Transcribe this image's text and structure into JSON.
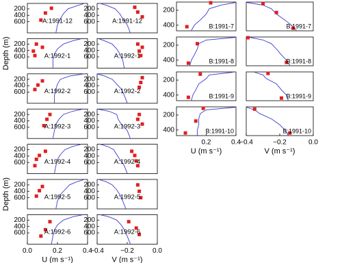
{
  "chart_data": [
    {
      "type": "line",
      "label": "A:1991-12",
      "xlim": [
        0,
        0.4
      ],
      "ylim": [
        950,
        30
      ],
      "yticks": [
        200,
        400,
        600
      ],
      "series": [
        {
          "kind": "line",
          "color": "#3a3ad0",
          "x": [
            0.38,
            0.33,
            0.27,
            0.24,
            0.22,
            0.2,
            0.19
          ],
          "values": [
            30,
            100,
            200,
            350,
            500,
            700,
            940
          ]
        },
        {
          "kind": "scatter",
          "color": "#e02020",
          "x": [
            0.16,
            0.12,
            0.09
          ],
          "values": [
            180,
            330,
            550
          ]
        }
      ]
    },
    {
      "type": "line",
      "label": "A:1991-12",
      "xlim": [
        -0.4,
        0
      ],
      "ylim": [
        950,
        30
      ],
      "yticks": [
        200,
        400,
        600
      ],
      "series": [
        {
          "kind": "line",
          "color": "#3a3ad0",
          "x": [
            -0.38,
            -0.33,
            -0.28,
            -0.25,
            -0.23,
            -0.2,
            -0.18
          ],
          "values": [
            30,
            100,
            200,
            350,
            500,
            700,
            940
          ]
        },
        {
          "kind": "scatter",
          "color": "#e02020",
          "x": [
            -0.15,
            -0.13,
            -0.1
          ],
          "values": [
            150,
            300,
            450
          ]
        }
      ]
    },
    {
      "type": "line",
      "label": "A:1992-1",
      "xlim": [
        0,
        0.4
      ],
      "ylim": [
        950,
        30
      ],
      "yticks": [
        200,
        400,
        600
      ],
      "ylabel": "Depth (m)",
      "series": [
        {
          "kind": "line",
          "color": "#3a3ad0",
          "x": [
            0.36,
            0.3,
            0.24,
            0.2,
            0.18,
            0.17,
            0.17
          ],
          "values": [
            30,
            100,
            200,
            350,
            500,
            700,
            940
          ]
        },
        {
          "kind": "scatter",
          "color": "#e02020",
          "x": [
            0.06,
            0.1,
            0.04,
            0.05
          ],
          "values": [
            200,
            300,
            420,
            560
          ]
        }
      ]
    },
    {
      "type": "line",
      "label": "A:1992-1",
      "xlim": [
        -0.4,
        0
      ],
      "ylim": [
        950,
        30
      ],
      "yticks": [
        200,
        400,
        600
      ],
      "series": [
        {
          "kind": "line",
          "color": "#3a3ad0",
          "x": [
            -0.39,
            -0.35,
            -0.3,
            -0.27,
            -0.25,
            -0.23,
            -0.22
          ],
          "values": [
            30,
            100,
            200,
            350,
            500,
            700,
            940
          ]
        },
        {
          "kind": "scatter",
          "color": "#e02020",
          "x": [
            -0.13,
            -0.1,
            -0.12,
            -0.11
          ],
          "values": [
            200,
            300,
            420,
            560
          ]
        }
      ]
    },
    {
      "type": "line",
      "label": "A:1992-2",
      "xlim": [
        0,
        0.4
      ],
      "ylim": [
        950,
        30
      ],
      "yticks": [
        200,
        400,
        600
      ],
      "series": [
        {
          "kind": "line",
          "color": "#3a3ad0",
          "x": [
            0.38,
            0.28,
            0.22,
            0.2,
            0.19,
            0.18,
            0.18
          ],
          "values": [
            30,
            100,
            200,
            350,
            500,
            700,
            940
          ]
        },
        {
          "kind": "scatter",
          "color": "#e02020",
          "x": [
            0.1,
            0.07,
            0.05
          ],
          "values": [
            250,
            380,
            520
          ]
        }
      ]
    },
    {
      "type": "line",
      "label": "A:1992-2",
      "xlim": [
        -0.4,
        0
      ],
      "ylim": [
        950,
        30
      ],
      "yticks": [
        200,
        400,
        600
      ],
      "series": [
        {
          "kind": "line",
          "color": "#3a3ad0",
          "x": [
            -0.4,
            -0.35,
            -0.3,
            -0.27,
            -0.24,
            -0.22,
            -0.2
          ],
          "values": [
            30,
            100,
            200,
            350,
            500,
            700,
            940
          ]
        },
        {
          "kind": "scatter",
          "color": "#e02020",
          "x": [
            -0.1,
            -0.11,
            -0.12
          ],
          "values": [
            150,
            300,
            450
          ]
        }
      ]
    },
    {
      "type": "line",
      "label": "A:1992-3",
      "xlim": [
        0,
        0.4
      ],
      "ylim": [
        950,
        30
      ],
      "yticks": [
        200,
        400,
        600
      ],
      "series": [
        {
          "kind": "line",
          "color": "#3a3ad0",
          "x": [
            0.37,
            0.3,
            0.24,
            0.21,
            0.19,
            0.18,
            0.17
          ],
          "values": [
            30,
            100,
            200,
            350,
            500,
            700,
            940
          ]
        },
        {
          "kind": "scatter",
          "color": "#e02020",
          "x": [
            0.15,
            0.13,
            0.11
          ],
          "values": [
            200,
            350,
            550
          ]
        }
      ]
    },
    {
      "type": "line",
      "label": "A:1992-3",
      "xlim": [
        -0.4,
        0
      ],
      "ylim": [
        950,
        30
      ],
      "yticks": [
        200,
        400,
        600
      ],
      "series": [
        {
          "kind": "line",
          "color": "#3a3ad0",
          "x": [
            -0.4,
            -0.32,
            -0.27,
            -0.26,
            -0.24,
            -0.2,
            -0.18
          ],
          "values": [
            30,
            100,
            200,
            350,
            500,
            700,
            940
          ]
        },
        {
          "kind": "scatter",
          "color": "#e02020",
          "x": [
            -0.12,
            -0.13,
            -0.1
          ],
          "values": [
            200,
            350,
            500
          ]
        }
      ]
    },
    {
      "type": "line",
      "label": "A:1992-4",
      "xlim": [
        0,
        0.4
      ],
      "ylim": [
        950,
        30
      ],
      "yticks": [
        200,
        400,
        600
      ],
      "series": [
        {
          "kind": "line",
          "color": "#3a3ad0",
          "x": [
            0.36,
            0.3,
            0.25,
            0.22,
            0.2,
            0.19,
            0.18
          ],
          "values": [
            30,
            100,
            200,
            350,
            500,
            700,
            940
          ]
        },
        {
          "kind": "scatter",
          "color": "#e02020",
          "x": [
            0.12,
            0.08,
            0.06,
            0.05
          ],
          "values": [
            250,
            380,
            500,
            700
          ]
        }
      ]
    },
    {
      "type": "line",
      "label": "A:1992-4",
      "xlim": [
        -0.4,
        0
      ],
      "ylim": [
        950,
        30
      ],
      "yticks": [
        200,
        400,
        600
      ],
      "series": [
        {
          "kind": "line",
          "color": "#3a3ad0",
          "x": [
            -0.38,
            -0.33,
            -0.29,
            -0.27,
            -0.25,
            -0.22,
            -0.2
          ],
          "values": [
            30,
            100,
            200,
            350,
            500,
            700,
            940
          ]
        },
        {
          "kind": "scatter",
          "color": "#e02020",
          "x": [
            -0.17,
            -0.15,
            -0.14,
            -0.13
          ],
          "values": [
            250,
            380,
            550,
            700
          ]
        }
      ]
    },
    {
      "type": "line",
      "label": "A:1992-5",
      "xlim": [
        0,
        0.4
      ],
      "ylim": [
        950,
        30
      ],
      "yticks": [
        200,
        400,
        600
      ],
      "ylabel": "Depth (m)",
      "series": [
        {
          "kind": "line",
          "color": "#3a3ad0",
          "x": [
            0.38,
            0.33,
            0.28,
            0.25,
            0.22,
            0.2,
            0.19
          ],
          "values": [
            30,
            100,
            200,
            350,
            500,
            700,
            940
          ]
        },
        {
          "kind": "scatter",
          "color": "#e02020",
          "x": [
            0.1,
            0.08,
            0.06
          ],
          "values": [
            250,
            380,
            550
          ]
        }
      ]
    },
    {
      "type": "line",
      "label": "A:1992-5",
      "xlim": [
        -0.4,
        0
      ],
      "ylim": [
        950,
        30
      ],
      "yticks": [
        200,
        400,
        600
      ],
      "series": [
        {
          "kind": "line",
          "color": "#3a3ad0",
          "x": [
            -0.39,
            -0.34,
            -0.3,
            -0.27,
            -0.25,
            -0.23,
            -0.21
          ],
          "values": [
            30,
            100,
            200,
            350,
            500,
            700,
            940
          ]
        },
        {
          "kind": "scatter",
          "color": "#e02020",
          "x": [
            -0.13,
            -0.12,
            -0.11
          ],
          "values": [
            200,
            400,
            600
          ]
        }
      ]
    },
    {
      "type": "line",
      "label": "A:1992-6",
      "xlim": [
        0,
        0.4
      ],
      "ylim": [
        950,
        30
      ],
      "yticks": [
        200,
        400,
        600
      ],
      "xticks": [
        {
          "value": 0,
          "label": "0.0"
        },
        0.2,
        0.4
      ],
      "xlabel": "U (m s⁻¹)",
      "series": [
        {
          "kind": "line",
          "color": "#3a3ad0",
          "x": [
            0.37,
            0.3,
            0.24,
            0.2,
            0.18,
            0.17,
            0.16
          ],
          "values": [
            30,
            100,
            200,
            350,
            500,
            700,
            940
          ]
        },
        {
          "kind": "scatter",
          "color": "#e02020",
          "x": [
            0.15,
            0.12,
            0.09
          ],
          "values": [
            250,
            500,
            700
          ]
        }
      ]
    },
    {
      "type": "line",
      "label": "A:1992-6",
      "xlim": [
        -0.4,
        0
      ],
      "ylim": [
        950,
        30
      ],
      "yticks": [
        200,
        400,
        600
      ],
      "xticks": [
        {
          "value": -0.4,
          "label": "−0.4"
        },
        {
          "value": -0.2,
          "label": "−0.2"
        },
        {
          "value": 0,
          "label": "0.0"
        }
      ],
      "xlabel": "V (m s⁻¹)",
      "series": [
        {
          "kind": "line",
          "color": "#3a3ad0",
          "x": [
            -0.38,
            -0.32,
            -0.27,
            -0.24,
            -0.22,
            -0.2,
            -0.18
          ],
          "values": [
            30,
            100,
            200,
            350,
            500,
            700,
            940
          ]
        },
        {
          "kind": "scatter",
          "color": "#e02020",
          "x": [
            -0.19,
            -0.14,
            -0.12
          ],
          "values": [
            250,
            450,
            650
          ]
        }
      ]
    },
    {
      "type": "line",
      "label": "B:1991-7",
      "xlim": [
        0,
        0.4
      ],
      "ylim": [
        475,
        90
      ],
      "yticks": [
        200,
        400
      ],
      "series": [
        {
          "kind": "line",
          "color": "#3a3ad0",
          "x": [
            0.4,
            0.3,
            0.22,
            0.2,
            0.16,
            0.12,
            0.1
          ],
          "values": [
            95,
            130,
            180,
            250,
            330,
            400,
            470
          ]
        },
        {
          "kind": "scatter",
          "color": "#e02020",
          "x": [
            0.23,
            0.07
          ],
          "values": [
            100,
            420
          ]
        }
      ]
    },
    {
      "type": "line",
      "label": "B:1991-7",
      "xlim": [
        -0.4,
        0
      ],
      "ylim": [
        475,
        90
      ],
      "series": [
        {
          "kind": "line",
          "color": "#3a3ad0",
          "x": [
            -0.4,
            -0.3,
            -0.25,
            -0.22,
            -0.17,
            -0.13,
            -0.1
          ],
          "values": [
            95,
            130,
            180,
            250,
            330,
            400,
            470
          ]
        },
        {
          "kind": "scatter",
          "color": "#e02020",
          "x": [
            -0.3,
            -0.22,
            -0.12
          ],
          "values": [
            110,
            230,
            440
          ]
        }
      ]
    },
    {
      "type": "line",
      "label": "B:1991-8",
      "xlim": [
        0,
        0.4
      ],
      "ylim": [
        475,
        90
      ],
      "yticks": [
        200,
        400
      ],
      "series": [
        {
          "kind": "line",
          "color": "#3a3ad0",
          "x": [
            0.4,
            0.2,
            0.15,
            0.14,
            0.12,
            0.1,
            0.09
          ],
          "values": [
            95,
            130,
            180,
            250,
            330,
            400,
            470
          ]
        },
        {
          "kind": "scatter",
          "color": "#e02020",
          "x": [
            0.14,
            0.08
          ],
          "values": [
            180,
            440
          ]
        }
      ]
    },
    {
      "type": "line",
      "label": "B:1991-8",
      "xlim": [
        -0.4,
        0
      ],
      "ylim": [
        475,
        90
      ],
      "series": [
        {
          "kind": "line",
          "color": "#3a3ad0",
          "x": [
            -0.38,
            -0.3,
            -0.25,
            -0.22,
            -0.19,
            -0.16,
            -0.14
          ],
          "values": [
            95,
            130,
            180,
            250,
            330,
            400,
            470
          ]
        },
        {
          "kind": "scatter",
          "color": "#e02020",
          "x": [
            -0.39,
            -0.16
          ],
          "values": [
            100,
            430
          ]
        }
      ]
    },
    {
      "type": "line",
      "label": "B:1991-9",
      "xlim": [
        0,
        0.4
      ],
      "ylim": [
        475,
        90
      ],
      "yticks": [
        200,
        400
      ],
      "series": [
        {
          "kind": "line",
          "color": "#3a3ad0",
          "x": [
            0.38,
            0.22,
            0.2,
            0.15,
            0.13,
            0.11,
            0.1
          ],
          "values": [
            95,
            130,
            180,
            250,
            330,
            400,
            470
          ]
        },
        {
          "kind": "scatter",
          "color": "#e02020",
          "x": [
            0.16,
            0.08
          ],
          "values": [
            120,
            430
          ]
        }
      ]
    },
    {
      "type": "line",
      "label": "B:1991-9",
      "xlim": [
        -0.4,
        0
      ],
      "ylim": [
        475,
        90
      ],
      "series": [
        {
          "kind": "line",
          "color": "#3a3ad0",
          "x": [
            -0.35,
            -0.3,
            -0.28,
            -0.22,
            -0.19,
            -0.16,
            -0.15
          ],
          "values": [
            95,
            130,
            180,
            250,
            330,
            400,
            470
          ]
        },
        {
          "kind": "scatter",
          "color": "#e02020",
          "x": [
            -0.27,
            -0.19
          ],
          "values": [
            110,
            440
          ]
        }
      ]
    },
    {
      "type": "line",
      "label": "B:1991-10",
      "xlim": [
        0,
        0.4
      ],
      "ylim": [
        475,
        90
      ],
      "yticks": [
        200,
        400
      ],
      "xticks": [
        0.2,
        0.4
      ],
      "xlabel": "U (m s⁻¹)",
      "series": [
        {
          "kind": "line",
          "color": "#3a3ad0",
          "x": [
            0.4,
            0.2,
            0.16,
            0.15,
            0.15,
            0.14,
            0.14
          ],
          "values": [
            95,
            130,
            180,
            250,
            330,
            400,
            470
          ]
        },
        {
          "kind": "scatter",
          "color": "#e02020",
          "x": [
            0.18,
            0.13,
            0.06
          ],
          "values": [
            110,
            280,
            440
          ]
        }
      ]
    },
    {
      "type": "line",
      "label": "B:1991-10",
      "xlim": [
        -0.4,
        0
      ],
      "ylim": [
        475,
        90
      ],
      "xticks": [
        {
          "value": -0.4,
          "label": "−0.4"
        },
        {
          "value": -0.2,
          "label": "−0.2"
        },
        {
          "value": 0,
          "label": "0.0"
        }
      ],
      "xlabel": "V (m s⁻¹)",
      "series": [
        {
          "kind": "line",
          "color": "#3a3ad0",
          "x": [
            -0.4,
            -0.35,
            -0.32,
            -0.25,
            -0.2,
            -0.17,
            -0.15
          ],
          "values": [
            95,
            130,
            180,
            250,
            330,
            400,
            470
          ]
        },
        {
          "kind": "scatter",
          "color": "#e02020",
          "x": [
            -0.35,
            -0.14
          ],
          "values": [
            120,
            440
          ]
        }
      ]
    }
  ]
}
